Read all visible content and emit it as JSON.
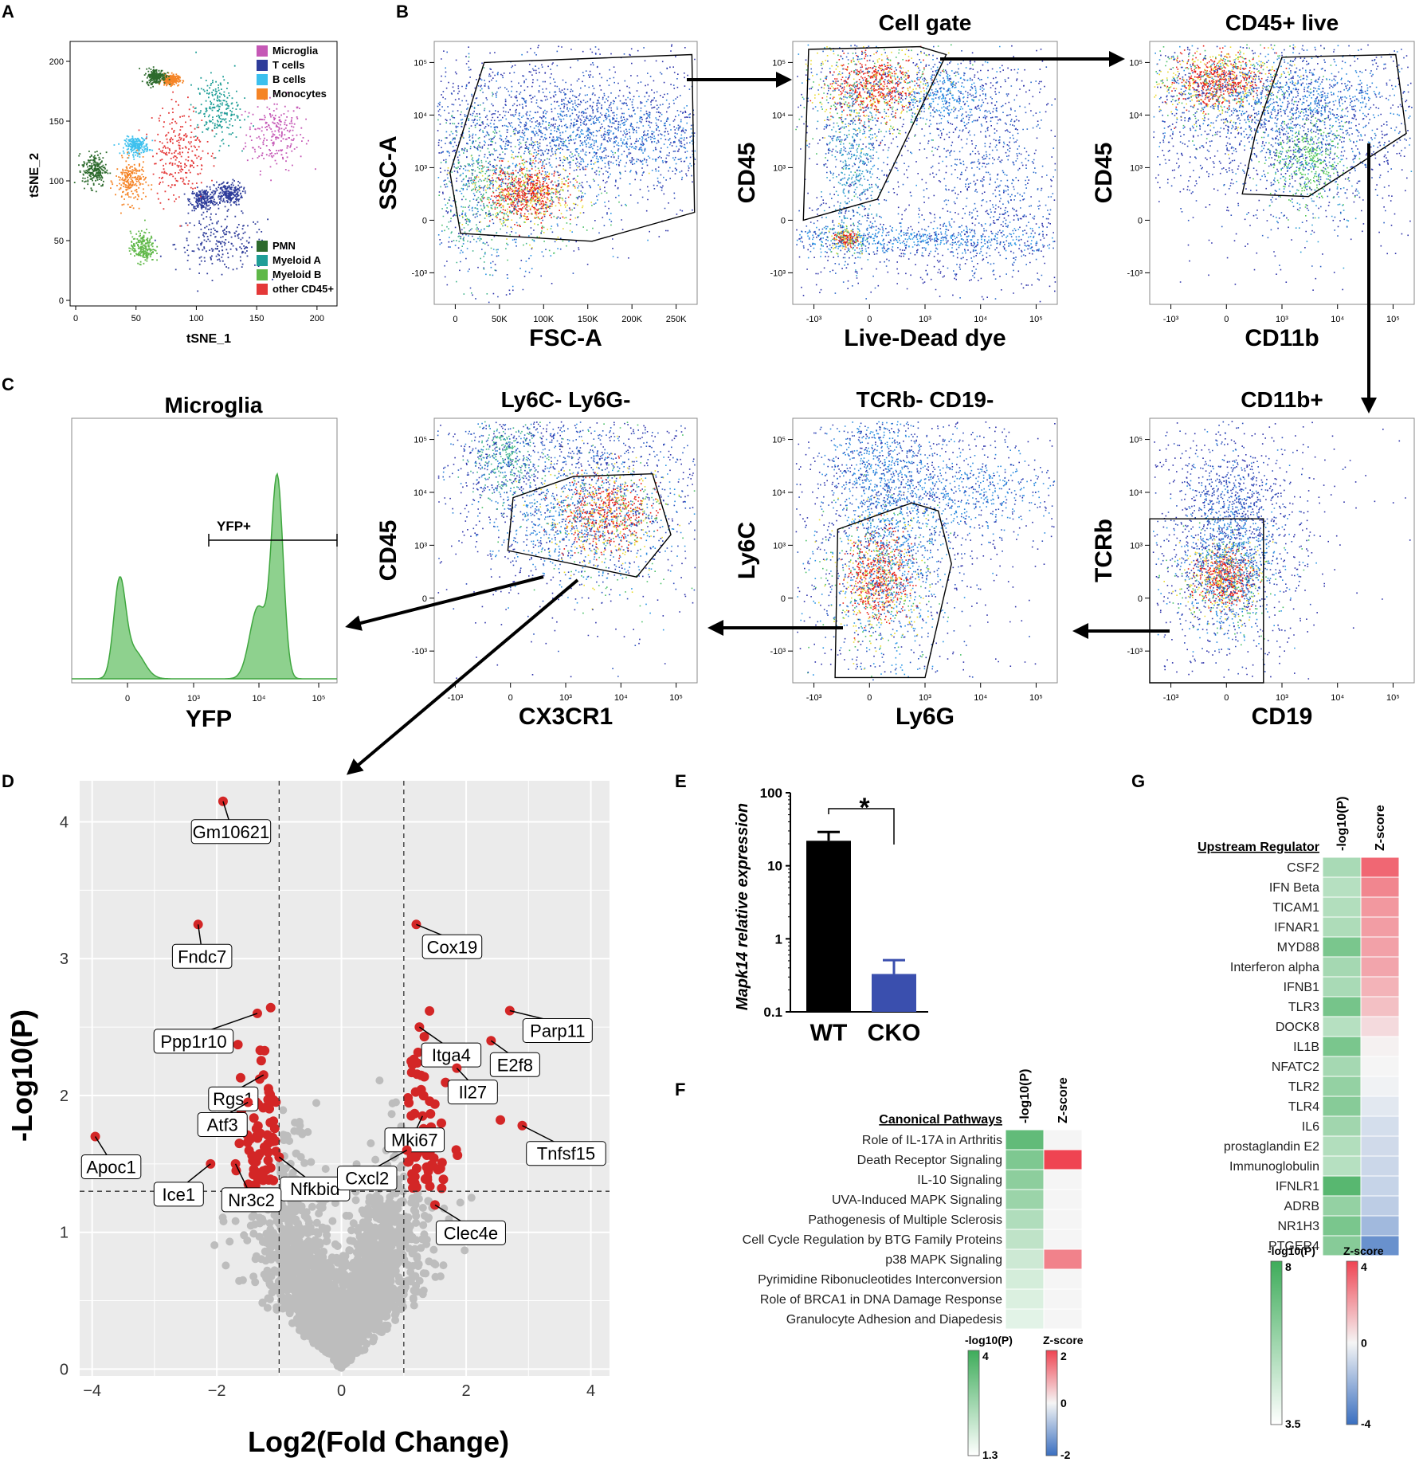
{
  "panel_letters": [
    "A",
    "B",
    "C",
    "D",
    "E",
    "F",
    "G"
  ],
  "chart_data": [
    {
      "id": "A",
      "type": "scatter",
      "title": "",
      "xlabel": "tSNE_1",
      "ylabel": "tSNE_2",
      "xlim": [
        0,
        210
      ],
      "ylim": [
        0,
        210
      ],
      "x_ticks": [
        "0",
        "50",
        "100",
        "150",
        "200"
      ],
      "y_ticks": [
        "0",
        "50",
        "100",
        "150",
        "200"
      ],
      "legend_top": [
        {
          "label": "Microglia",
          "color": "#c558b6"
        },
        {
          "label": "T cells",
          "color": "#2e3c9a"
        },
        {
          "label": "B cells",
          "color": "#3cc0ee"
        },
        {
          "label": "Monocytes",
          "color": "#f58426"
        }
      ],
      "legend_bottom": [
        {
          "label": "PMN",
          "color": "#2c6a2c"
        },
        {
          "label": "Myeloid A",
          "color": "#1f9e97"
        },
        {
          "label": "Myeloid B",
          "color": "#5fb848"
        },
        {
          "label": "other CD45+",
          "color": "#e43838"
        }
      ],
      "clusters": [
        {
          "group": "Microglia",
          "cx": 165,
          "cy": 140,
          "rx": 27,
          "ry": 33
        },
        {
          "group": "T cells",
          "cx": 120,
          "cy": 48,
          "rx": 42,
          "ry": 26
        },
        {
          "group": "T cells",
          "cx": 105,
          "cy": 85,
          "rx": 12,
          "ry": 10
        },
        {
          "group": "T cells",
          "cx": 126,
          "cy": 90,
          "rx": 13,
          "ry": 11
        },
        {
          "group": "B cells",
          "cx": 50,
          "cy": 130,
          "rx": 11,
          "ry": 8
        },
        {
          "group": "Monocytes",
          "cx": 45,
          "cy": 100,
          "rx": 14,
          "ry": 20
        },
        {
          "group": "Monocytes",
          "cx": 78,
          "cy": 185,
          "rx": 8,
          "ry": 5
        },
        {
          "group": "PMN",
          "cx": 15,
          "cy": 110,
          "rx": 11,
          "ry": 16
        },
        {
          "group": "PMN",
          "cx": 66,
          "cy": 188,
          "rx": 9,
          "ry": 7
        },
        {
          "group": "Myeloid A",
          "cx": 117,
          "cy": 160,
          "rx": 20,
          "ry": 30
        },
        {
          "group": "Myeloid B",
          "cx": 55,
          "cy": 45,
          "rx": 11,
          "ry": 14
        },
        {
          "group": "other CD45+",
          "cx": 85,
          "cy": 125,
          "rx": 25,
          "ry": 45
        }
      ]
    },
    {
      "id": "B1",
      "type": "scatter",
      "title": "",
      "xlabel": "FSC-A",
      "ylabel": "SSC-A",
      "x_ticks": [
        "0",
        "50K",
        "100K",
        "150K",
        "200K",
        "250K"
      ],
      "y_ticks": [
        "10⁵",
        "10⁴",
        "10³",
        "0",
        "-10³"
      ]
    },
    {
      "id": "B2",
      "type": "scatter",
      "title": "Cell gate",
      "xlabel": "Live-Dead dye",
      "ylabel": "CD45",
      "x_ticks": [
        "-10³",
        "0",
        "10³",
        "10⁴",
        "10⁵"
      ],
      "y_ticks": [
        "10⁵",
        "10⁴",
        "10³",
        "0",
        "-10³"
      ]
    },
    {
      "id": "B3",
      "type": "scatter",
      "title": "CD45+ live",
      "xlabel": "CD11b",
      "ylabel": "CD45",
      "x_ticks": [
        "-10³",
        "0",
        "10³",
        "10⁴",
        "10⁵"
      ],
      "y_ticks": [
        "10⁵",
        "10⁴",
        "10³",
        "0",
        "-10³"
      ]
    },
    {
      "id": "C4",
      "type": "scatter",
      "title": "CD11b+",
      "xlabel": "CD19",
      "ylabel": "TCRb",
      "x_ticks": [
        "-10³",
        "0",
        "10³",
        "10⁴",
        "10⁵"
      ],
      "y_ticks": [
        "10⁵",
        "10⁴",
        "10³",
        "0",
        "-10³"
      ]
    },
    {
      "id": "C3",
      "type": "scatter",
      "title": "TCRb- CD19-",
      "xlabel": "Ly6G",
      "ylabel": "Ly6C",
      "x_ticks": [
        "-10³",
        "0",
        "10³",
        "10⁴",
        "10⁵"
      ],
      "y_ticks": [
        "10⁵",
        "10⁴",
        "10³",
        "0",
        "-10³"
      ]
    },
    {
      "id": "C2",
      "type": "scatter",
      "title": "Ly6C- Ly6G-",
      "xlabel": "CX3CR1",
      "ylabel": "CD45",
      "x_ticks": [
        "-10³",
        "0",
        "10³",
        "10⁴",
        "10⁵"
      ],
      "y_ticks": [
        "10⁵",
        "10⁴",
        "10³",
        "0",
        "-10³"
      ]
    },
    {
      "id": "C1",
      "type": "area",
      "title": "Microglia",
      "xlabel": "YFP",
      "ylabel": "",
      "gate_label": "YFP+",
      "x_ticks": [
        "0",
        "10³",
        "10⁴",
        "10⁵"
      ]
    },
    {
      "id": "D",
      "type": "scatter",
      "title": "",
      "xlabel": "Log2(Fold Change)",
      "ylabel": "-Log10(P)",
      "xlim": [
        -4.2,
        4.3
      ],
      "ylim": [
        -0.05,
        4.3
      ],
      "x_ticks": [
        "-4",
        "-2",
        "0",
        "2",
        "4"
      ],
      "y_ticks": [
        "0",
        "1",
        "2",
        "3",
        "4"
      ],
      "threshold_fc": [
        -1,
        1
      ],
      "threshold_p": 1.3,
      "labeled_points": [
        {
          "label": "Gm10621",
          "x": -1.9,
          "y": 4.15
        },
        {
          "label": "Fndc7",
          "x": -2.3,
          "y": 3.25
        },
        {
          "label": "Ppp1r10",
          "x": -1.35,
          "y": 2.6
        },
        {
          "label": "Rgs1",
          "x": -1.25,
          "y": 2.15
        },
        {
          "label": "Atf3",
          "x": -1.5,
          "y": 1.95
        },
        {
          "label": "Ice1",
          "x": -2.1,
          "y": 1.5
        },
        {
          "label": "Apoc1",
          "x": -3.95,
          "y": 1.7
        },
        {
          "label": "Nfkbid",
          "x": -1.0,
          "y": 1.55
        },
        {
          "label": "Nr3c2",
          "x": -1.7,
          "y": 1.5
        },
        {
          "label": "Cox19",
          "x": 1.2,
          "y": 3.25
        },
        {
          "label": "Itga4",
          "x": 1.25,
          "y": 2.5
        },
        {
          "label": "Parp11",
          "x": 2.7,
          "y": 2.62
        },
        {
          "label": "E2f8",
          "x": 2.4,
          "y": 2.4
        },
        {
          "label": "Il27",
          "x": 1.85,
          "y": 2.2
        },
        {
          "label": "Mki67",
          "x": 1.3,
          "y": 1.85
        },
        {
          "label": "Cxcl2",
          "x": 1.05,
          "y": 1.6
        },
        {
          "label": "Tnfsf15",
          "x": 2.9,
          "y": 1.78
        },
        {
          "label": "Clec4e",
          "x": 1.5,
          "y": 1.2
        }
      ]
    },
    {
      "id": "E",
      "type": "bar",
      "title": "",
      "ylabel": "Mapk14 relative expression",
      "categories": [
        "WT",
        "CKO"
      ],
      "values": [
        22,
        0.33
      ],
      "errors": [
        7,
        0.18
      ],
      "colors": [
        "#000000",
        "#3a4fae"
      ],
      "y_scale": "log",
      "ylim": [
        0.1,
        100
      ],
      "y_ticks": [
        "0.1",
        "1",
        "10",
        "100"
      ],
      "significance": "*"
    },
    {
      "id": "F",
      "type": "heatmap",
      "title": "Canonical Pathways",
      "columns": [
        "-log10(P)",
        "Z-score"
      ],
      "rows": [
        {
          "name": "Role of IL-17A in Arthritis",
          "logp": 3.5,
          "z": 0
        },
        {
          "name": "Death Receptor Signaling",
          "logp": 3.1,
          "z": 2.0
        },
        {
          "name": "IL-10 Signaling",
          "logp": 2.9,
          "z": 0
        },
        {
          "name": "UVA-Induced MAPK Signaling",
          "logp": 2.7,
          "z": 0
        },
        {
          "name": "Pathogenesis of Multiple Sclerosis",
          "logp": 2.4,
          "z": 0
        },
        {
          "name": "Cell Cycle Regulation by BTG Family Proteins",
          "logp": 2.2,
          "z": 0
        },
        {
          "name": "p38 MAPK Signaling",
          "logp": 2.0,
          "z": 1.3
        },
        {
          "name": "Pyrimidine Ribonucleotides Interconversion",
          "logp": 1.9,
          "z": 0
        },
        {
          "name": "Role of BRCA1 in DNA Damage Response",
          "logp": 1.8,
          "z": 0
        },
        {
          "name": "Granulocyte Adhesion and Diapedesis",
          "logp": 1.7,
          "z": 0
        }
      ],
      "legend_logp": {
        "label": "-log10(P)",
        "max": "4",
        "min": "1.3"
      },
      "legend_z": {
        "label": "Z-score",
        "max": "2",
        "mid": "0",
        "min": "-2"
      }
    },
    {
      "id": "G",
      "type": "heatmap",
      "title": "Upstream Regulator",
      "columns": [
        "-log10(P)",
        "Z-score"
      ],
      "rows": [
        {
          "name": "CSF2",
          "logp": 5.5,
          "z": 3.2
        },
        {
          "name": "IFN Beta",
          "logp": 5.2,
          "z": 2.5
        },
        {
          "name": "TICAM1",
          "logp": 5.3,
          "z": 2.1
        },
        {
          "name": "IFNAR1",
          "logp": 5.4,
          "z": 2.0
        },
        {
          "name": "MYD88",
          "logp": 6.6,
          "z": 1.9
        },
        {
          "name": "Interferon alpha",
          "logp": 5.6,
          "z": 1.8
        },
        {
          "name": "IFNB1",
          "logp": 5.5,
          "z": 1.5
        },
        {
          "name": "TLR3",
          "logp": 6.7,
          "z": 1.2
        },
        {
          "name": "DOCK8",
          "logp": 5.2,
          "z": 0.6
        },
        {
          "name": "IL1B",
          "logp": 6.6,
          "z": 0.1
        },
        {
          "name": "NFATC2",
          "logp": 5.6,
          "z": 0.0
        },
        {
          "name": "TLR2",
          "logp": 6.0,
          "z": -0.1
        },
        {
          "name": "TLR4",
          "logp": 6.3,
          "z": -0.4
        },
        {
          "name": "IL6",
          "logp": 5.7,
          "z": -0.7
        },
        {
          "name": "prostaglandin E2",
          "logp": 5.3,
          "z": -0.8
        },
        {
          "name": "Immunoglobulin",
          "logp": 5.2,
          "z": -0.9
        },
        {
          "name": "IFNLR1",
          "logp": 7.4,
          "z": -1.0
        },
        {
          "name": "ADRB",
          "logp": 6.0,
          "z": -1.2
        },
        {
          "name": "NR1H3",
          "logp": 6.6,
          "z": -1.8
        },
        {
          "name": "PTGER4",
          "logp": 6.3,
          "z": -3.0
        }
      ],
      "legend_logp": {
        "label": "-log10(P)",
        "max": "8",
        "min": "3.5"
      },
      "legend_z": {
        "label": "Z-score",
        "max": "4",
        "mid": "0",
        "min": "-4"
      }
    }
  ]
}
